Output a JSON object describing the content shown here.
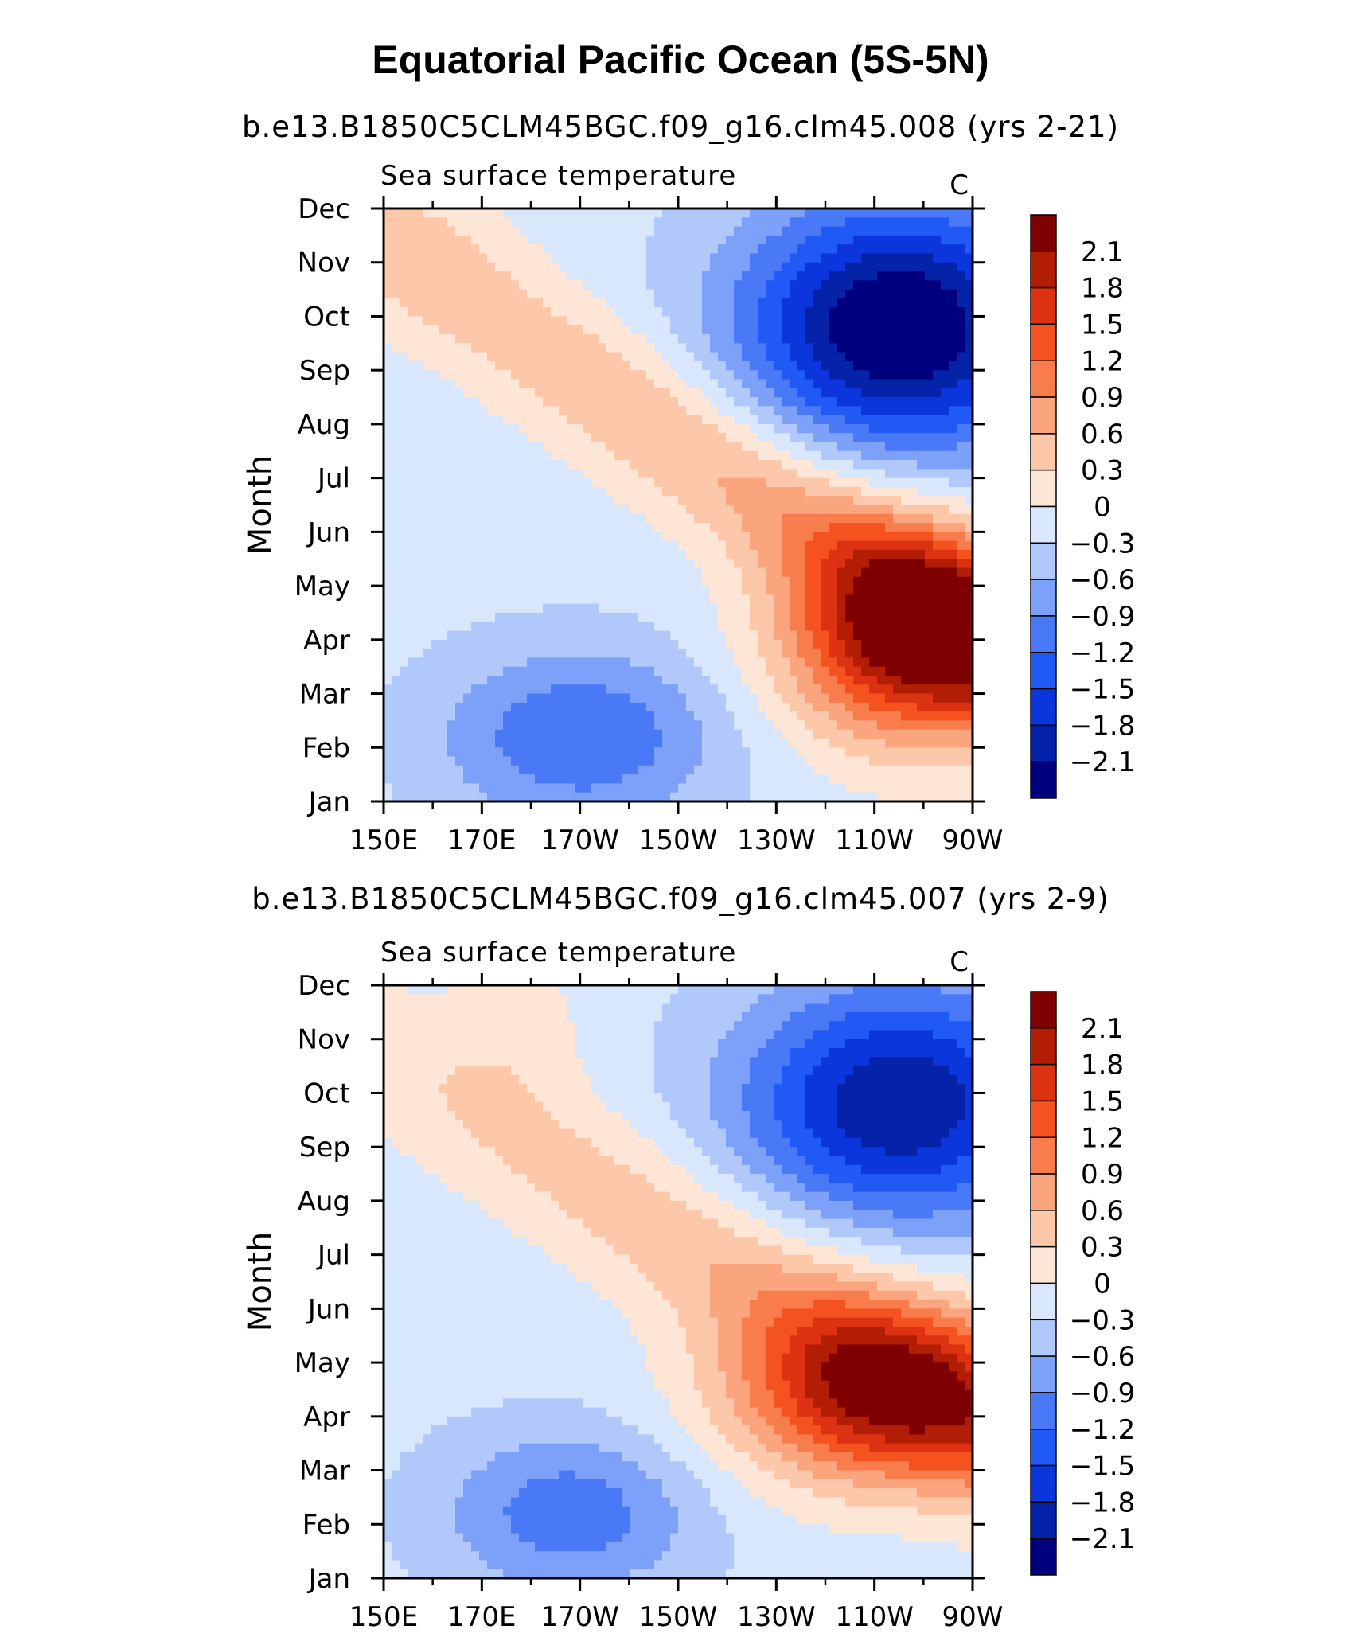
{
  "page": {
    "title": "Equatorial Pacific Ocean (5S-5N)"
  },
  "chart_data": [
    {
      "type": "heatmap",
      "title": "b.e13.B1850C5CLM45BGC.f09_g16.clm45.008 (yrs 2-21)",
      "left_string": "Sea surface temperature",
      "right_string": "C",
      "ylabel": "Month",
      "xlabel": "",
      "x_ticks": [
        "150E",
        "170E",
        "170W",
        "150W",
        "130W",
        "110W",
        "90W"
      ],
      "y_ticks": [
        "Jan",
        "Feb",
        "Mar",
        "Apr",
        "May",
        "Jun",
        "Jul",
        "Aug",
        "Sep",
        "Oct",
        "Nov",
        "Dec"
      ],
      "xlim": [
        150,
        270
      ],
      "ylim": [
        1,
        12
      ],
      "colorbar": {
        "levels": [
          -2.1,
          -1.8,
          -1.5,
          -1.2,
          -0.9,
          -0.6,
          -0.3,
          0,
          0.3,
          0.6,
          0.9,
          1.2,
          1.5,
          1.8,
          2.1
        ],
        "labels": [
          "2.1",
          "1.8",
          "1.5",
          "1.2",
          "0.9",
          "0.6",
          "0.3",
          "0",
          "−0.3",
          "−0.6",
          "−0.9",
          "−1.2",
          "−1.5",
          "−1.8",
          "−2.1"
        ],
        "colors": [
          "#00007f",
          "#0523a8",
          "#0b36dc",
          "#2159f5",
          "#4a79f7",
          "#7da1f8",
          "#b1c8fa",
          "#d8e7fc",
          "#fde6d6",
          "#fdc7aa",
          "#fba57e",
          "#f87c4c",
          "#f45320",
          "#dd3212",
          "#b21d05",
          "#7f0000"
        ]
      },
      "features": [
        {
          "name": "warm anomaly max",
          "value": 2.3,
          "lon": 258,
          "month": 4.2
        },
        {
          "name": "cold anomaly min",
          "value": -2.2,
          "lon": 255,
          "month": 9.7
        },
        {
          "name": "secondary cold",
          "value": -1.0,
          "lon": 185,
          "month": 2.3
        },
        {
          "name": "western warm",
          "value": 0.2,
          "lon": 155,
          "month": 11.5
        }
      ]
    },
    {
      "type": "heatmap",
      "title": "b.e13.B1850C5CLM45BGC.f09_g16.clm45.007 (yrs 2-9)",
      "left_string": "Sea surface temperature",
      "right_string": "C",
      "ylabel": "Month",
      "xlabel": "",
      "x_ticks": [
        "150E",
        "170E",
        "170W",
        "150W",
        "130W",
        "110W",
        "90W"
      ],
      "y_ticks": [
        "Jan",
        "Feb",
        "Mar",
        "Apr",
        "May",
        "Jun",
        "Jul",
        "Aug",
        "Sep",
        "Oct",
        "Nov",
        "Dec"
      ],
      "xlim": [
        150,
        270
      ],
      "ylim": [
        1,
        12
      ],
      "colorbar": {
        "levels": [
          -2.1,
          -1.8,
          -1.5,
          -1.2,
          -0.9,
          -0.6,
          -0.3,
          0,
          0.3,
          0.6,
          0.9,
          1.2,
          1.5,
          1.8,
          2.1
        ],
        "labels": [
          "2.1",
          "1.8",
          "1.5",
          "1.2",
          "0.9",
          "0.6",
          "0.3",
          "0",
          "−0.3",
          "−0.6",
          "−0.9",
          "−1.2",
          "−1.5",
          "−1.8",
          "−2.1"
        ],
        "colors": [
          "#00007f",
          "#0523a8",
          "#0b36dc",
          "#2159f5",
          "#4a79f7",
          "#7da1f8",
          "#b1c8fa",
          "#d8e7fc",
          "#fde6d6",
          "#fdc7aa",
          "#fba57e",
          "#f87c4c",
          "#f45320",
          "#dd3212",
          "#b21d05",
          "#7f0000"
        ]
      },
      "features": [
        {
          "name": "warm anomaly max",
          "value": 1.9,
          "lon": 250,
          "month": 4.5
        },
        {
          "name": "cold anomaly min",
          "value": -1.8,
          "lon": 255,
          "month": 9.8
        },
        {
          "name": "secondary cold",
          "value": -0.9,
          "lon": 185,
          "month": 2.3
        },
        {
          "name": "western warm",
          "value": 0.2,
          "lon": 178,
          "month": 11.5
        }
      ]
    }
  ]
}
